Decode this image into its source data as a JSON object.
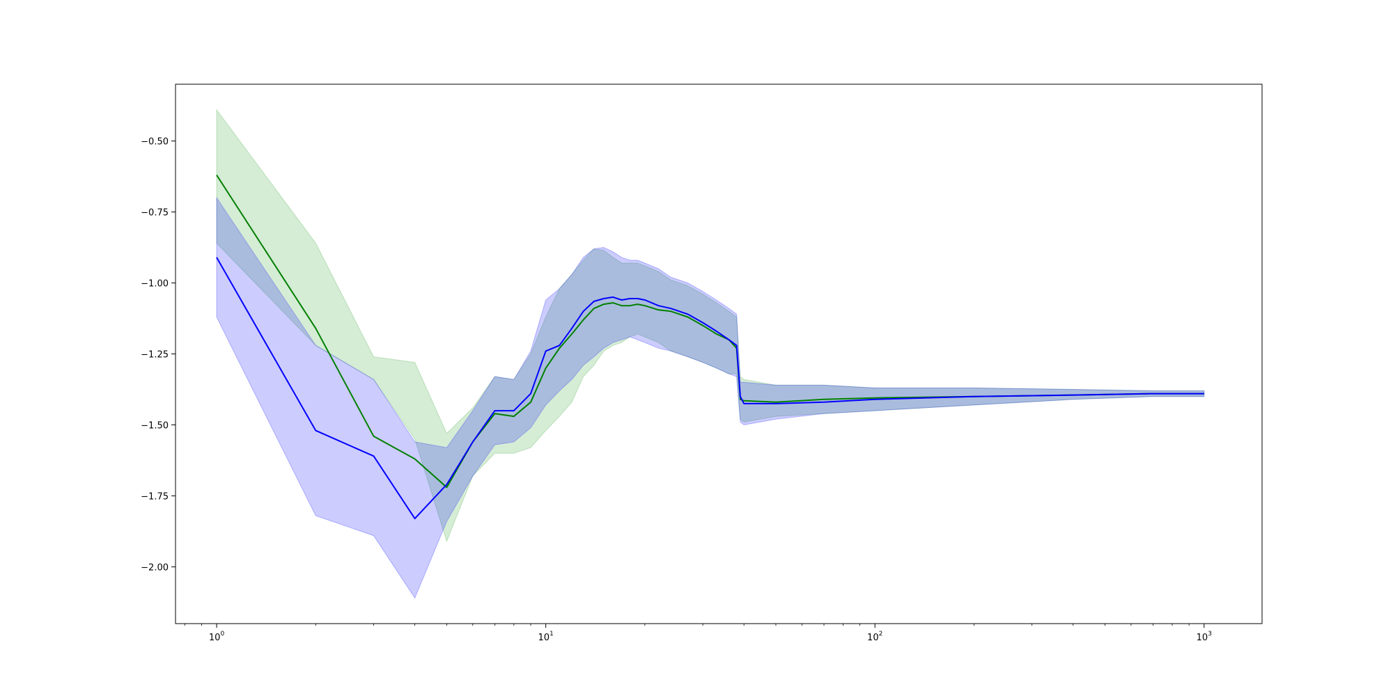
{
  "chart_data": {
    "type": "line",
    "title": "",
    "xlabel": "",
    "ylabel": "",
    "x_scale": "log",
    "xlim": [
      0.75,
      1500
    ],
    "ylim": [
      -2.2,
      -0.3
    ],
    "grid": false,
    "legend": "none",
    "x_ticks": [
      {
        "value": 1,
        "base": "10",
        "exp": "0"
      },
      {
        "value": 10,
        "base": "10",
        "exp": "1"
      },
      {
        "value": 100,
        "base": "10",
        "exp": "2"
      },
      {
        "value": 1000,
        "base": "10",
        "exp": "3"
      }
    ],
    "y_ticks": [
      {
        "value": -0.5,
        "label": "−0.50"
      },
      {
        "value": -0.75,
        "label": "−0.75"
      },
      {
        "value": -1.0,
        "label": "−1.00"
      },
      {
        "value": -1.25,
        "label": "−1.25"
      },
      {
        "value": -1.5,
        "label": "−1.50"
      },
      {
        "value": -1.75,
        "label": "−1.75"
      },
      {
        "value": -2.0,
        "label": "−2.00"
      }
    ],
    "series": [
      {
        "color": "#008000",
        "band_color": "#2ca02c",
        "x": [
          1,
          2,
          3,
          4,
          5,
          6,
          7,
          8,
          9,
          10,
          11,
          12,
          13,
          14,
          15,
          16,
          17,
          18,
          19,
          20,
          22,
          24,
          27,
          30,
          33,
          36,
          38,
          39,
          40,
          50,
          70,
          100,
          200,
          400,
          700,
          1000
        ],
        "y": [
          -0.62,
          -1.16,
          -1.54,
          -1.62,
          -1.72,
          -1.56,
          -1.46,
          -1.47,
          -1.42,
          -1.3,
          -1.23,
          -1.18,
          -1.13,
          -1.09,
          -1.075,
          -1.07,
          -1.08,
          -1.08,
          -1.075,
          -1.08,
          -1.095,
          -1.1,
          -1.12,
          -1.15,
          -1.18,
          -1.2,
          -1.23,
          -1.41,
          -1.415,
          -1.42,
          -1.41,
          -1.405,
          -1.4,
          -1.395,
          -1.39,
          -1.39
        ],
        "lower": [
          -0.86,
          -1.22,
          -1.34,
          -1.55,
          -1.91,
          -1.68,
          -1.6,
          -1.6,
          -1.58,
          -1.52,
          -1.47,
          -1.42,
          -1.33,
          -1.29,
          -1.24,
          -1.22,
          -1.21,
          -1.19,
          -1.18,
          -1.19,
          -1.21,
          -1.24,
          -1.26,
          -1.28,
          -1.3,
          -1.32,
          -1.32,
          -1.48,
          -1.49,
          -1.47,
          -1.46,
          -1.45,
          -1.43,
          -1.41,
          -1.4,
          -1.4
        ],
        "upper": [
          -0.39,
          -0.86,
          -1.26,
          -1.28,
          -1.53,
          -1.44,
          -1.33,
          -1.34,
          -1.25,
          -1.12,
          -1.02,
          -0.97,
          -0.92,
          -0.88,
          -0.885,
          -0.91,
          -0.93,
          -0.93,
          -0.93,
          -0.94,
          -0.96,
          -0.99,
          -1.01,
          -1.04,
          -1.07,
          -1.1,
          -1.12,
          -1.33,
          -1.34,
          -1.36,
          -1.36,
          -1.37,
          -1.37,
          -1.375,
          -1.38,
          -1.38
        ]
      },
      {
        "color": "#0000ff",
        "band_color": "#0000ff",
        "x": [
          1,
          2,
          3,
          4,
          5,
          6,
          7,
          8,
          9,
          10,
          11,
          12,
          13,
          14,
          15,
          16,
          17,
          18,
          19,
          20,
          22,
          24,
          27,
          30,
          33,
          36,
          38,
          39,
          40,
          50,
          70,
          100,
          200,
          400,
          700,
          1000
        ],
        "y": [
          -0.91,
          -1.52,
          -1.61,
          -1.83,
          -1.71,
          -1.56,
          -1.45,
          -1.45,
          -1.39,
          -1.24,
          -1.22,
          -1.16,
          -1.1,
          -1.065,
          -1.055,
          -1.05,
          -1.06,
          -1.055,
          -1.055,
          -1.06,
          -1.08,
          -1.09,
          -1.11,
          -1.14,
          -1.17,
          -1.2,
          -1.22,
          -1.4,
          -1.425,
          -1.425,
          -1.42,
          -1.41,
          -1.4,
          -1.395,
          -1.39,
          -1.39
        ],
        "lower": [
          -1.12,
          -1.82,
          -1.89,
          -2.11,
          -1.84,
          -1.68,
          -1.57,
          -1.56,
          -1.51,
          -1.43,
          -1.38,
          -1.34,
          -1.29,
          -1.26,
          -1.23,
          -1.21,
          -1.2,
          -1.19,
          -1.2,
          -1.21,
          -1.23,
          -1.24,
          -1.26,
          -1.28,
          -1.3,
          -1.32,
          -1.33,
          -1.49,
          -1.5,
          -1.48,
          -1.46,
          -1.45,
          -1.43,
          -1.41,
          -1.4,
          -1.4
        ],
        "upper": [
          -0.7,
          -1.22,
          -1.34,
          -1.56,
          -1.58,
          -1.45,
          -1.33,
          -1.34,
          -1.24,
          -1.06,
          -1.02,
          -0.97,
          -0.91,
          -0.88,
          -0.875,
          -0.89,
          -0.91,
          -0.92,
          -0.92,
          -0.93,
          -0.95,
          -0.98,
          -1.0,
          -1.03,
          -1.06,
          -1.09,
          -1.11,
          -1.35,
          -1.35,
          -1.36,
          -1.36,
          -1.37,
          -1.37,
          -1.375,
          -1.38,
          -1.38
        ]
      }
    ]
  }
}
